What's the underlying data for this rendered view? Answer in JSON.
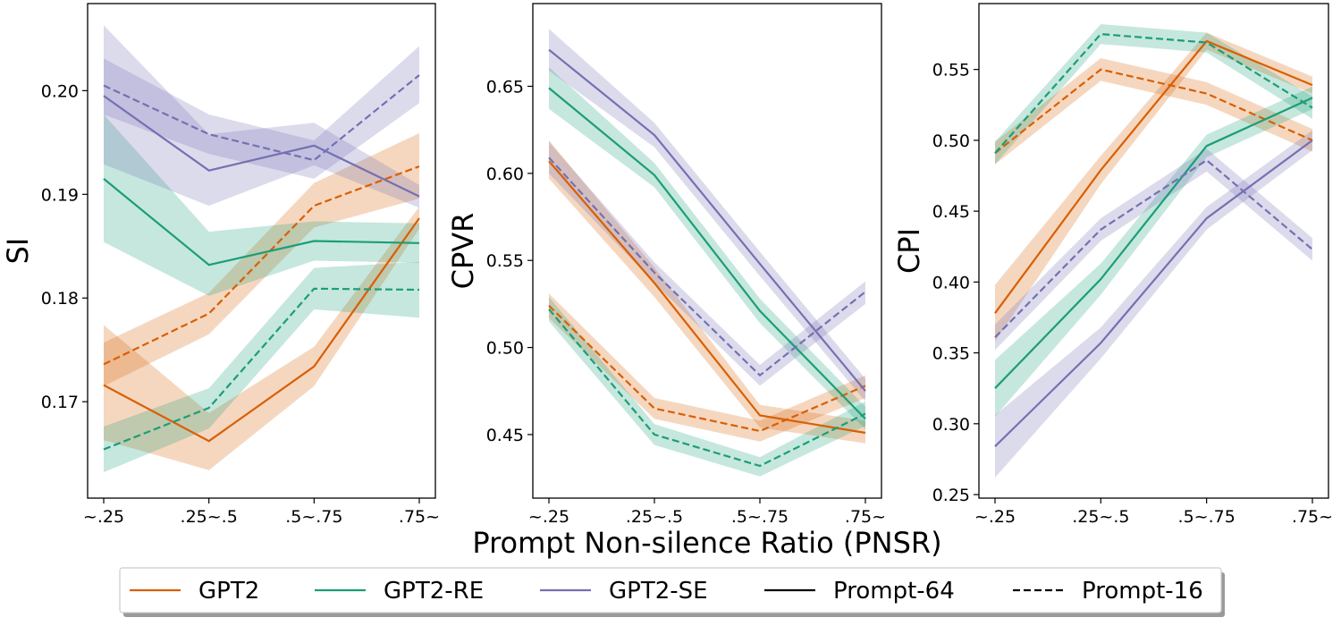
{
  "colors": {
    "GPT2": "#d95f02",
    "GPT2-RE": "#1b9e77",
    "GPT2-SE": "#7570b3"
  },
  "legend": {
    "items": [
      {
        "label": "GPT2",
        "kind": "color",
        "series": "GPT2"
      },
      {
        "label": "GPT2-RE",
        "kind": "color",
        "series": "GPT2-RE"
      },
      {
        "label": "GPT2-SE",
        "kind": "color",
        "series": "GPT2-SE"
      },
      {
        "label": "Prompt-64",
        "kind": "solid"
      },
      {
        "label": "Prompt-16",
        "kind": "dashed"
      }
    ]
  },
  "chart_data": [
    {
      "type": "line",
      "title": "",
      "xlabel": "Prompt Non-silence Ratio (PNSR)",
      "ylabel": "SI",
      "categories": [
        "~.25",
        ".25~.5",
        ".5~.75",
        ".75~"
      ],
      "ylim": [
        0.1607,
        0.2084
      ],
      "yticks": [
        0.17,
        0.18,
        0.19,
        0.2
      ],
      "ytick_labels": [
        "0.17",
        "0.18",
        "0.19",
        "0.20"
      ],
      "series": [
        {
          "model": "GPT2",
          "prompt": "Prompt-64",
          "values": [
            0.1716,
            0.1662,
            0.1734,
            0.1877
          ],
          "lower": [
            0.1663,
            0.1634,
            0.1715,
            0.1867
          ],
          "upper": [
            0.1774,
            0.1689,
            0.1753,
            0.1888
          ]
        },
        {
          "model": "GPT2",
          "prompt": "Prompt-16",
          "values": [
            0.1736,
            0.1785,
            0.1889,
            0.1927
          ],
          "lower": [
            0.1715,
            0.1765,
            0.1868,
            0.1896
          ],
          "upper": [
            0.1757,
            0.1805,
            0.1911,
            0.1959
          ]
        },
        {
          "model": "GPT2-RE",
          "prompt": "Prompt-64",
          "values": [
            0.1915,
            0.1832,
            0.1855,
            0.1853
          ],
          "lower": [
            0.1854,
            0.1802,
            0.1836,
            0.1834
          ],
          "upper": [
            0.1977,
            0.1864,
            0.1874,
            0.1872
          ]
        },
        {
          "model": "GPT2-RE",
          "prompt": "Prompt-16",
          "values": [
            0.1654,
            0.1694,
            0.1809,
            0.1808
          ],
          "lower": [
            0.1632,
            0.1674,
            0.1789,
            0.1781
          ],
          "upper": [
            0.1676,
            0.1713,
            0.1829,
            0.1835
          ]
        },
        {
          "model": "GPT2-SE",
          "prompt": "Prompt-64",
          "values": [
            0.1995,
            0.1923,
            0.1947,
            0.1898
          ],
          "lower": [
            0.1929,
            0.1889,
            0.1928,
            0.1887
          ],
          "upper": [
            0.2063,
            0.1958,
            0.1969,
            0.1909
          ]
        },
        {
          "model": "GPT2-SE",
          "prompt": "Prompt-16",
          "values": [
            0.2005,
            0.1958,
            0.1933,
            0.2015
          ],
          "lower": [
            0.1977,
            0.1939,
            0.1915,
            0.1988
          ],
          "upper": [
            0.2031,
            0.1977,
            0.1952,
            0.2043
          ]
        }
      ]
    },
    {
      "type": "line",
      "title": "",
      "xlabel": "",
      "ylabel": "CPVR",
      "categories": [
        "~.25",
        ".25~.5",
        ".5~.75",
        ".75~"
      ],
      "ylim": [
        0.4135,
        0.6975
      ],
      "yticks": [
        0.45,
        0.5,
        0.55,
        0.6,
        0.65
      ],
      "ytick_labels": [
        "0.45",
        "0.50",
        "0.55",
        "0.60",
        "0.65"
      ],
      "series": [
        {
          "model": "GPT2",
          "prompt": "Prompt-64",
          "values": [
            0.607,
            0.537,
            0.461,
            0.451
          ],
          "lower": [
            0.597,
            0.529,
            0.454,
            0.445
          ],
          "upper": [
            0.619,
            0.546,
            0.467,
            0.458
          ]
        },
        {
          "model": "GPT2",
          "prompt": "Prompt-16",
          "values": [
            0.524,
            0.465,
            0.452,
            0.478
          ],
          "lower": [
            0.517,
            0.459,
            0.446,
            0.471
          ],
          "upper": [
            0.531,
            0.471,
            0.458,
            0.484
          ]
        },
        {
          "model": "GPT2-RE",
          "prompt": "Prompt-64",
          "values": [
            0.649,
            0.599,
            0.521,
            0.459
          ],
          "lower": [
            0.637,
            0.592,
            0.514,
            0.453
          ],
          "upper": [
            0.661,
            0.606,
            0.528,
            0.466
          ]
        },
        {
          "model": "GPT2-RE",
          "prompt": "Prompt-16",
          "values": [
            0.522,
            0.45,
            0.432,
            0.462
          ],
          "lower": [
            0.515,
            0.444,
            0.426,
            0.455
          ],
          "upper": [
            0.529,
            0.456,
            0.437,
            0.469
          ]
        },
        {
          "model": "GPT2-SE",
          "prompt": "Prompt-64",
          "values": [
            0.671,
            0.622,
            0.548,
            0.475
          ],
          "lower": [
            0.659,
            0.615,
            0.541,
            0.469
          ],
          "upper": [
            0.683,
            0.629,
            0.555,
            0.482
          ]
        },
        {
          "model": "GPT2-SE",
          "prompt": "Prompt-16",
          "values": [
            0.609,
            0.543,
            0.484,
            0.532
          ],
          "lower": [
            0.6,
            0.537,
            0.478,
            0.525
          ],
          "upper": [
            0.618,
            0.549,
            0.49,
            0.538
          ]
        }
      ]
    },
    {
      "type": "line",
      "title": "",
      "xlabel": "",
      "ylabel": "CPI",
      "categories": [
        "~.25",
        ".25~.5",
        ".5~.75",
        ".75~"
      ],
      "ylim": [
        0.2475,
        0.5965
      ],
      "yticks": [
        0.25,
        0.3,
        0.35,
        0.4,
        0.45,
        0.5,
        0.55
      ],
      "ytick_labels": [
        "0.25",
        "0.30",
        "0.35",
        "0.40",
        "0.45",
        "0.50",
        "0.55"
      ],
      "series": [
        {
          "model": "GPT2",
          "prompt": "Prompt-64",
          "values": [
            0.378,
            0.479,
            0.57,
            0.539
          ],
          "lower": [
            0.358,
            0.469,
            0.564,
            0.533
          ],
          "upper": [
            0.398,
            0.489,
            0.576,
            0.545
          ]
        },
        {
          "model": "GPT2",
          "prompt": "Prompt-16",
          "values": [
            0.491,
            0.55,
            0.533,
            0.5
          ],
          "lower": [
            0.483,
            0.542,
            0.525,
            0.492
          ],
          "upper": [
            0.499,
            0.558,
            0.541,
            0.508
          ]
        },
        {
          "model": "GPT2-RE",
          "prompt": "Prompt-64",
          "values": [
            0.325,
            0.402,
            0.496,
            0.53
          ],
          "lower": [
            0.305,
            0.391,
            0.488,
            0.522
          ],
          "upper": [
            0.345,
            0.413,
            0.504,
            0.538
          ]
        },
        {
          "model": "GPT2-RE",
          "prompt": "Prompt-16",
          "values": [
            0.491,
            0.575,
            0.569,
            0.523
          ],
          "lower": [
            0.483,
            0.568,
            0.562,
            0.515
          ],
          "upper": [
            0.499,
            0.582,
            0.576,
            0.531
          ]
        },
        {
          "model": "GPT2-SE",
          "prompt": "Prompt-64",
          "values": [
            0.284,
            0.357,
            0.445,
            0.5
          ],
          "lower": [
            0.262,
            0.346,
            0.437,
            0.493
          ],
          "upper": [
            0.306,
            0.368,
            0.453,
            0.507
          ]
        },
        {
          "model": "GPT2-SE",
          "prompt": "Prompt-16",
          "values": [
            0.361,
            0.437,
            0.486,
            0.423
          ],
          "lower": [
            0.352,
            0.429,
            0.478,
            0.415
          ],
          "upper": [
            0.37,
            0.445,
            0.494,
            0.431
          ]
        }
      ]
    }
  ]
}
